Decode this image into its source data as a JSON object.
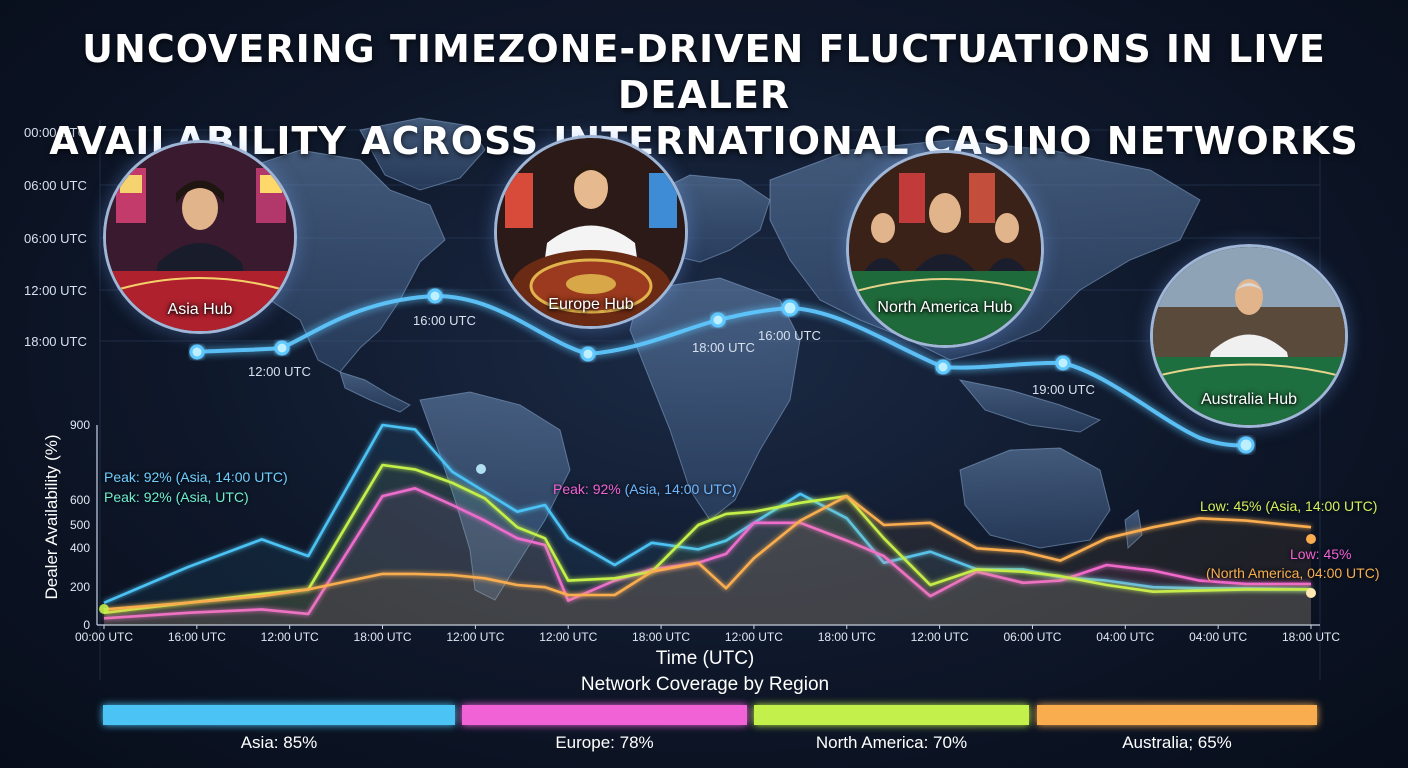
{
  "title_line1": "UNCOVERING TIMEZONE-DRIVEN FLUCTUATIONS IN LIVE DEALER",
  "title_line2": "AVAILABILITY ACROSS INTERNATIONAL CASINO NETWORKS",
  "map_time_ticks": [
    "00:00 UTC",
    "06:00 UTC",
    "06:00 UTC",
    "12:00 UTC",
    "18:00 UTC"
  ],
  "hubs": [
    {
      "label": "Asia Hub",
      "icon": "dealer-hub-photo"
    },
    {
      "label": "Europe Hub",
      "icon": "roulette-dealer-photo"
    },
    {
      "label": "North America Hub",
      "icon": "blackjack-dealers-photo"
    },
    {
      "label": "Australia Hub",
      "icon": "casino-dealer-photo"
    }
  ],
  "timeline_labels": [
    "12:00 UTC",
    "16:00 UTC",
    "18:00 UTC",
    "16:00 UTC",
    "19:00 UTC"
  ],
  "annotations": {
    "peak_asia_1": "Peak: 92% (Asia, 14:00 UTC)",
    "peak_asia_2": "Peak: 92% (Asia, UTC)",
    "peak_europe_prefix": "Peak: 92%",
    "peak_europe_suffix": "(Asia, 14:00 UTC)",
    "low_na": "Low: 45% (Asia, 14:00 UTC)",
    "low_aus_line1": "Low: 45%",
    "low_aus_line2": "(North America, 04:00 UTC)"
  },
  "coverage": {
    "title": "Network Coverage by Region",
    "regions": [
      {
        "label": "Asia: 85%",
        "value": 85,
        "color": "#4cc3f5"
      },
      {
        "label": "Europe: 78%",
        "value": 78,
        "color": "#f062d6"
      },
      {
        "label": "North America: 70%",
        "value": 70,
        "color": "#c3f04a"
      },
      {
        "label": "Australia; 65%",
        "value": 65,
        "color": "#f9ad4f"
      }
    ]
  },
  "colors": {
    "asia": "#4cc3f5",
    "europe": "#f062d6",
    "north_america": "#c3f04a",
    "australia": "#f9ad4f",
    "timeline": "#5fc8ff"
  },
  "chart_data": {
    "type": "line",
    "title": "",
    "xlabel": "Time (UTC)",
    "ylabel": "Dealer Availability (%)",
    "ylim": [
      0,
      900
    ],
    "yticks": [
      900,
      600,
      500,
      400,
      200,
      0
    ],
    "categories": [
      "00:00 UTC",
      "16:00 UTC",
      "12:00 UTC",
      "18:00 UTC",
      "12:00 UTC",
      "12:00 UTC",
      "18:00 UTC",
      "12:00 UTC",
      "18:00 UTC",
      "12:00 UTC",
      "06:00 UTC",
      "04:00 UTC",
      "04:00 UTC",
      "18:00 UTC"
    ],
    "grid": true,
    "legend": "none",
    "series": [
      {
        "color": "#4cc3f5",
        "points": [
          [
            0,
            100
          ],
          [
            0.9,
            260
          ],
          [
            1.7,
            385
          ],
          [
            2.2,
            310
          ],
          [
            3.0,
            950
          ],
          [
            3.35,
            880
          ],
          [
            3.75,
            690
          ],
          [
            4.1,
            600
          ],
          [
            4.45,
            510
          ],
          [
            4.75,
            540
          ],
          [
            5.0,
            390
          ],
          [
            5.5,
            270
          ],
          [
            5.9,
            370
          ],
          [
            6.4,
            340
          ],
          [
            6.7,
            380
          ],
          [
            7.0,
            460
          ],
          [
            7.5,
            590
          ],
          [
            8.0,
            480
          ],
          [
            8.4,
            280
          ],
          [
            8.9,
            330
          ],
          [
            9.4,
            250
          ],
          [
            9.9,
            250
          ],
          [
            10.3,
            215
          ],
          [
            10.8,
            200
          ],
          [
            11.3,
            170
          ],
          [
            11.8,
            165
          ],
          [
            12.3,
            165
          ],
          [
            13.0,
            160
          ]
        ]
      },
      {
        "color": "#f062d6",
        "points": [
          [
            0,
            30
          ],
          [
            0.9,
            55
          ],
          [
            1.7,
            70
          ],
          [
            2.2,
            50
          ],
          [
            3.0,
            580
          ],
          [
            3.35,
            615
          ],
          [
            3.75,
            540
          ],
          [
            4.1,
            470
          ],
          [
            4.45,
            390
          ],
          [
            4.75,
            360
          ],
          [
            5.0,
            110
          ],
          [
            5.5,
            200
          ],
          [
            5.9,
            250
          ],
          [
            6.4,
            280
          ],
          [
            6.7,
            320
          ],
          [
            7.0,
            460
          ],
          [
            7.5,
            460
          ],
          [
            8.0,
            380
          ],
          [
            8.4,
            310
          ],
          [
            8.9,
            130
          ],
          [
            9.4,
            240
          ],
          [
            9.9,
            190
          ],
          [
            10.3,
            200
          ],
          [
            10.8,
            270
          ],
          [
            11.3,
            245
          ],
          [
            11.8,
            200
          ],
          [
            12.3,
            185
          ],
          [
            13.0,
            185
          ]
        ]
      },
      {
        "color": "#c3f04a",
        "points": [
          [
            0,
            55
          ],
          [
            0.9,
            100
          ],
          [
            1.7,
            140
          ],
          [
            2.2,
            160
          ],
          [
            3.0,
            720
          ],
          [
            3.35,
            700
          ],
          [
            3.75,
            640
          ],
          [
            4.1,
            570
          ],
          [
            4.45,
            440
          ],
          [
            4.75,
            390
          ],
          [
            5.0,
            200
          ],
          [
            5.5,
            210
          ],
          [
            5.9,
            240
          ],
          [
            6.4,
            450
          ],
          [
            6.7,
            500
          ],
          [
            7.0,
            510
          ],
          [
            7.5,
            550
          ],
          [
            8.0,
            580
          ],
          [
            8.4,
            390
          ],
          [
            8.9,
            180
          ],
          [
            9.4,
            250
          ],
          [
            9.9,
            240
          ],
          [
            10.3,
            220
          ],
          [
            10.8,
            180
          ],
          [
            11.3,
            150
          ],
          [
            11.8,
            155
          ],
          [
            12.3,
            160
          ],
          [
            13.0,
            160
          ]
        ]
      },
      {
        "color": "#f9ad4f",
        "points": [
          [
            0,
            70
          ],
          [
            0.9,
            100
          ],
          [
            1.7,
            130
          ],
          [
            2.2,
            160
          ],
          [
            3.0,
            230
          ],
          [
            3.35,
            230
          ],
          [
            3.75,
            225
          ],
          [
            4.1,
            210
          ],
          [
            4.45,
            180
          ],
          [
            4.75,
            170
          ],
          [
            5.0,
            135
          ],
          [
            5.5,
            135
          ],
          [
            5.9,
            240
          ],
          [
            6.4,
            280
          ],
          [
            6.7,
            165
          ],
          [
            7.0,
            300
          ],
          [
            7.5,
            470
          ],
          [
            8.0,
            580
          ],
          [
            8.4,
            450
          ],
          [
            8.9,
            460
          ],
          [
            9.4,
            345
          ],
          [
            9.9,
            330
          ],
          [
            10.3,
            290
          ],
          [
            10.8,
            390
          ],
          [
            11.3,
            440
          ],
          [
            11.8,
            480
          ],
          [
            12.3,
            470
          ],
          [
            13.0,
            440
          ]
        ]
      }
    ]
  }
}
